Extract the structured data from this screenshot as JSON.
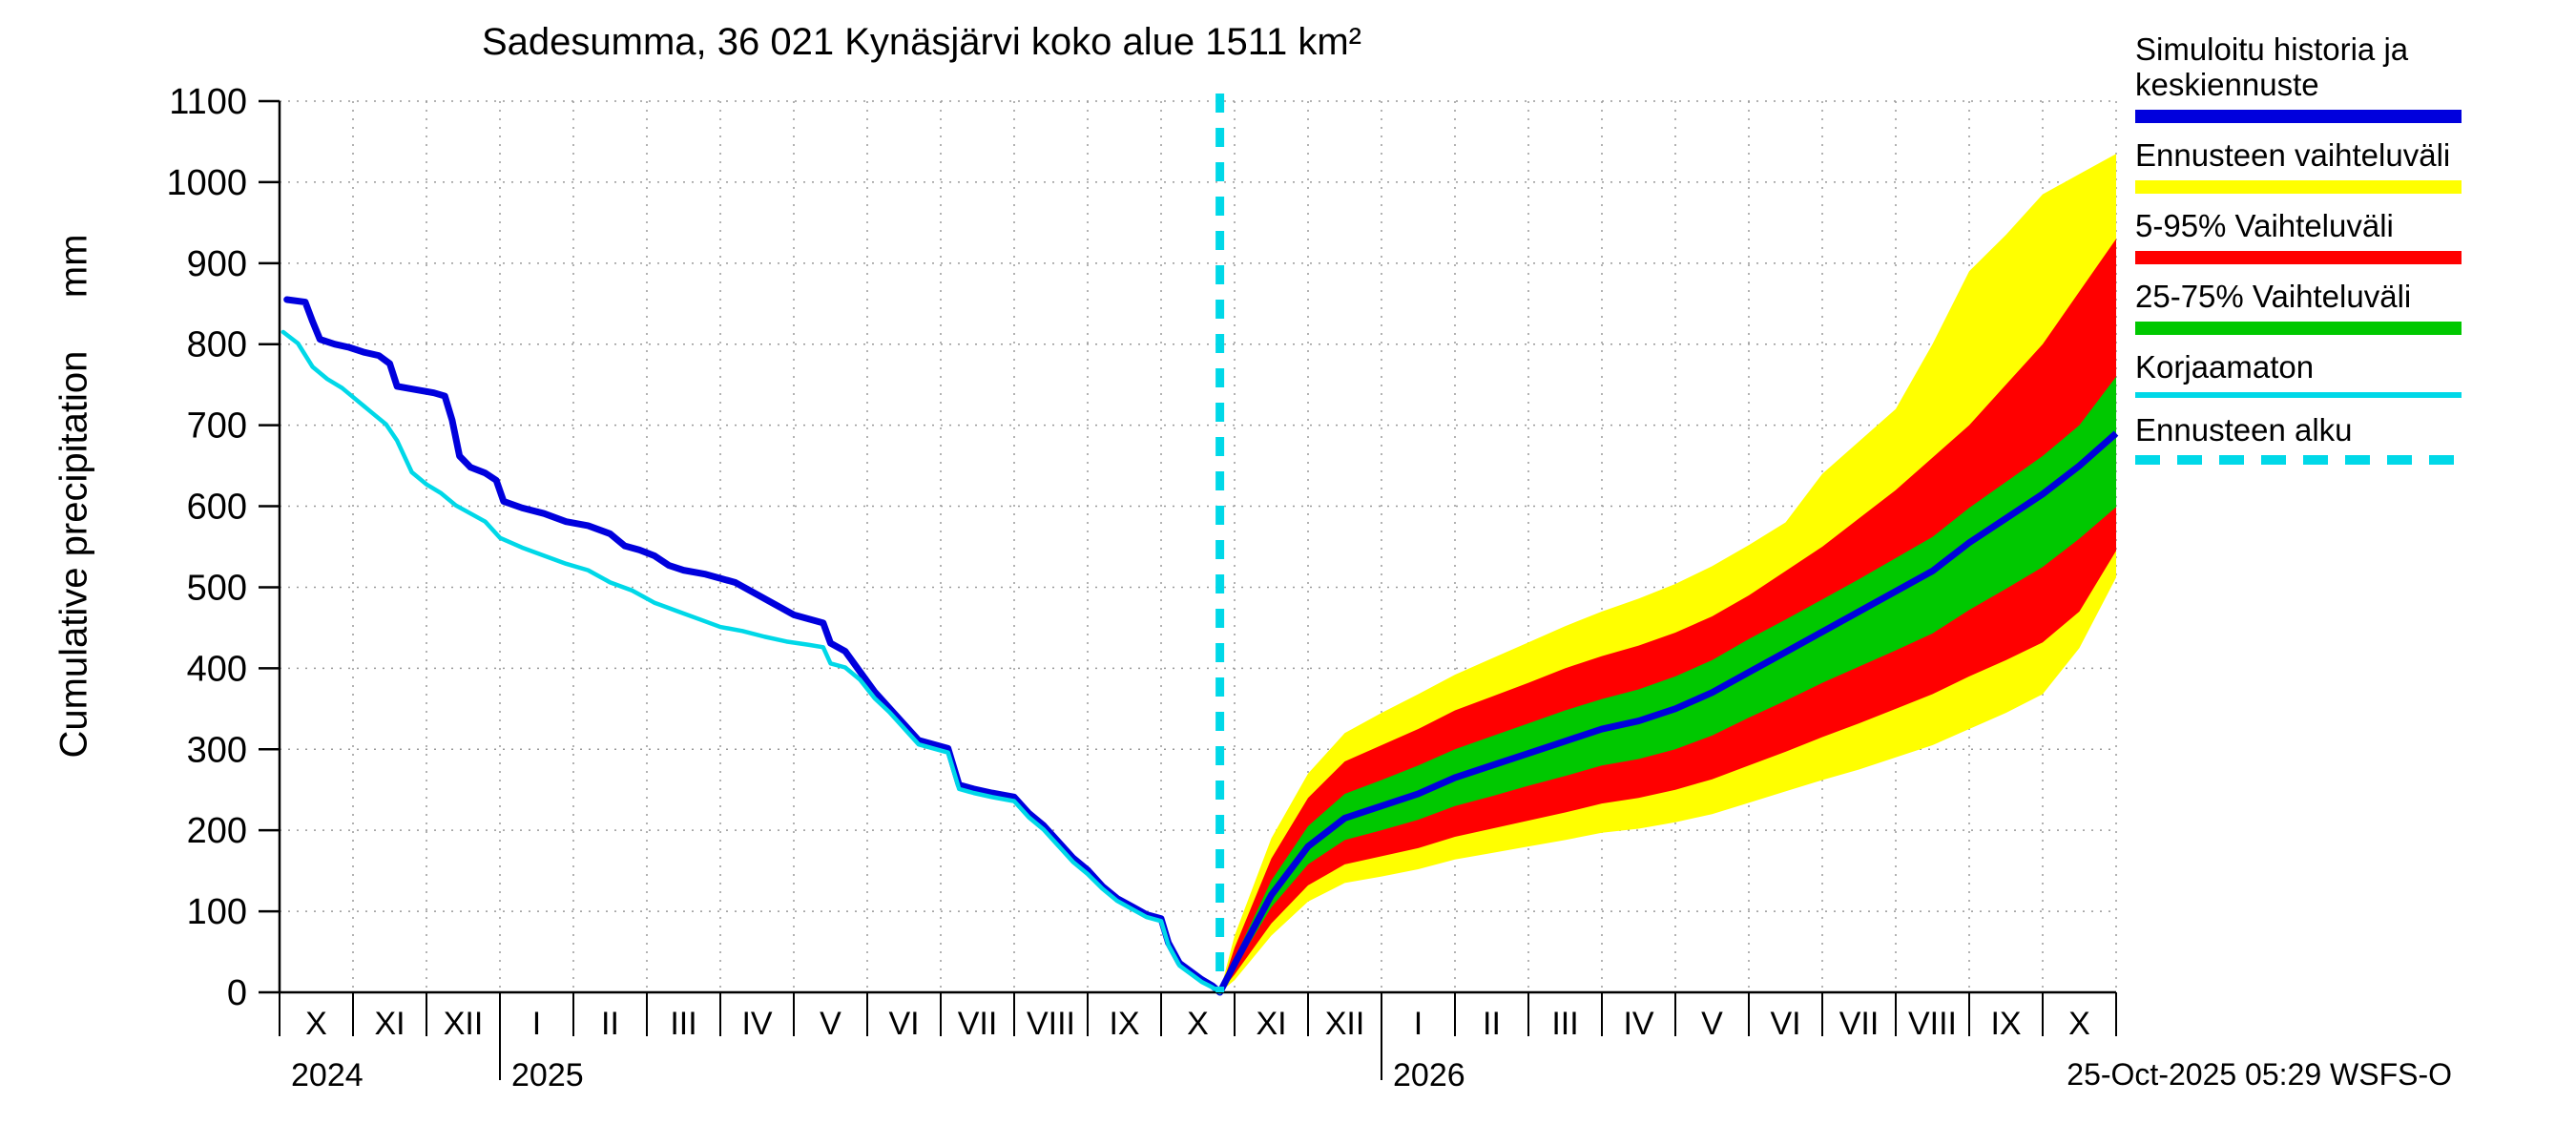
{
  "page": {
    "title": "Sadesumma, 36 021 Kynäsjärvi koko alue 1511 km²",
    "ylabel": "Cumulative precipitation     mm",
    "footer": "25-Oct-2025 05:29 WSFS-O"
  },
  "legend": {
    "entries": [
      {
        "label": "Simuloitu historia ja keskiennuste",
        "color": "#0000dd",
        "style": "thick-line"
      },
      {
        "label": "Ennusteen vaihteluväli",
        "color": "#ffff00",
        "style": "thick-line"
      },
      {
        "label": "5-95% Vaihteluväli",
        "color": "#ff0000",
        "style": "thick-line"
      },
      {
        "label": "25-75% Vaihteluväli",
        "color": "#00c800",
        "style": "thick-line"
      },
      {
        "label": "Korjaamaton",
        "color": "#00d8e8",
        "style": "thin-line"
      },
      {
        "label": "Ennusteen alku",
        "color": "#00d8e8",
        "style": "dashed-line"
      }
    ]
  },
  "chart_data": {
    "type": "line",
    "title": "Sadesumma, 36 021 Kynäsjärvi koko alue 1511 km²",
    "ylabel": "Cumulative precipitation (mm)",
    "ylim": [
      0,
      1100
    ],
    "yticks": [
      0,
      100,
      200,
      300,
      400,
      500,
      600,
      700,
      800,
      900,
      1000,
      1100
    ],
    "xlim_months": [
      0,
      25
    ],
    "x_unit": "months from 2024-10-01",
    "month_labels": [
      "X",
      "XI",
      "XII",
      "I",
      "II",
      "III",
      "IV",
      "V",
      "VI",
      "VII",
      "VIII",
      "IX",
      "X",
      "XI",
      "XII",
      "I",
      "II",
      "III",
      "IV",
      "V",
      "VI",
      "VII",
      "VIII",
      "IX",
      "X"
    ],
    "year_labels": [
      {
        "label": "2024",
        "at_month": 0
      },
      {
        "label": "2025",
        "at_month": 3
      },
      {
        "label": "2026",
        "at_month": 15
      }
    ],
    "forecast_start_month": 12.8,
    "forecast_start_date": "25-Oct-2025",
    "grid": true,
    "legend_position": "top-right",
    "colors": {
      "history_mean": "#0000dd",
      "uncorrected": "#00d8e8",
      "range": "#ffff00",
      "p5_95": "#ff0000",
      "p25_75": "#00c800",
      "grid": "#999999",
      "axis": "#000000"
    },
    "series": {
      "history_corrected": [
        [
          0.1,
          855
        ],
        [
          0.35,
          852
        ],
        [
          0.45,
          828
        ],
        [
          0.55,
          806
        ],
        [
          0.75,
          800
        ],
        [
          0.95,
          796
        ],
        [
          1.15,
          790
        ],
        [
          1.35,
          786
        ],
        [
          1.5,
          776
        ],
        [
          1.6,
          748
        ],
        [
          1.85,
          744
        ],
        [
          2.1,
          740
        ],
        [
          2.25,
          736
        ],
        [
          2.35,
          706
        ],
        [
          2.45,
          662
        ],
        [
          2.6,
          648
        ],
        [
          2.8,
          641
        ],
        [
          2.95,
          632
        ],
        [
          3.05,
          606
        ],
        [
          3.3,
          598
        ],
        [
          3.6,
          591
        ],
        [
          3.9,
          581
        ],
        [
          4.2,
          576
        ],
        [
          4.5,
          566
        ],
        [
          4.7,
          551
        ],
        [
          4.9,
          546
        ],
        [
          5.1,
          539
        ],
        [
          5.3,
          527
        ],
        [
          5.5,
          521
        ],
        [
          5.8,
          516
        ],
        [
          6.0,
          511
        ],
        [
          6.2,
          506
        ],
        [
          6.5,
          491
        ],
        [
          6.8,
          476
        ],
        [
          7.0,
          466
        ],
        [
          7.2,
          461
        ],
        [
          7.4,
          456
        ],
        [
          7.5,
          431
        ],
        [
          7.7,
          421
        ],
        [
          7.9,
          396
        ],
        [
          8.1,
          371
        ],
        [
          8.3,
          351
        ],
        [
          8.5,
          331
        ],
        [
          8.7,
          311
        ],
        [
          8.9,
          306
        ],
        [
          9.1,
          301
        ],
        [
          9.25,
          256
        ],
        [
          9.45,
          251
        ],
        [
          9.7,
          246
        ],
        [
          10.0,
          241
        ],
        [
          10.2,
          221
        ],
        [
          10.4,
          206
        ],
        [
          10.6,
          186
        ],
        [
          10.8,
          166
        ],
        [
          11.0,
          151
        ],
        [
          11.2,
          131
        ],
        [
          11.4,
          116
        ],
        [
          11.6,
          106
        ],
        [
          11.8,
          96
        ],
        [
          12.0,
          91
        ],
        [
          12.1,
          61
        ],
        [
          12.25,
          36
        ],
        [
          12.4,
          26
        ],
        [
          12.55,
          16
        ],
        [
          12.7,
          8
        ],
        [
          12.8,
          0
        ]
      ],
      "history_uncorrected": [
        [
          0.05,
          815
        ],
        [
          0.25,
          801
        ],
        [
          0.45,
          772
        ],
        [
          0.65,
          757
        ],
        [
          0.85,
          746
        ],
        [
          1.05,
          731
        ],
        [
          1.25,
          716
        ],
        [
          1.45,
          701
        ],
        [
          1.6,
          681
        ],
        [
          1.8,
          642
        ],
        [
          2.0,
          627
        ],
        [
          2.2,
          616
        ],
        [
          2.4,
          601
        ],
        [
          2.6,
          591
        ],
        [
          2.8,
          581
        ],
        [
          3.0,
          561
        ],
        [
          3.3,
          549
        ],
        [
          3.6,
          539
        ],
        [
          3.9,
          529
        ],
        [
          4.2,
          521
        ],
        [
          4.5,
          506
        ],
        [
          4.8,
          496
        ],
        [
          5.1,
          481
        ],
        [
          5.4,
          471
        ],
        [
          5.7,
          461
        ],
        [
          6.0,
          451
        ],
        [
          6.3,
          446
        ],
        [
          6.6,
          439
        ],
        [
          6.9,
          433
        ],
        [
          7.2,
          429
        ],
        [
          7.4,
          426
        ],
        [
          7.5,
          406
        ],
        [
          7.7,
          401
        ],
        [
          7.9,
          386
        ],
        [
          8.1,
          363
        ],
        [
          8.3,
          346
        ],
        [
          8.5,
          326
        ],
        [
          8.7,
          306
        ],
        [
          8.9,
          301
        ],
        [
          9.1,
          296
        ],
        [
          9.25,
          251
        ],
        [
          9.45,
          246
        ],
        [
          9.7,
          241
        ],
        [
          10.0,
          236
        ],
        [
          10.2,
          216
        ],
        [
          10.4,
          201
        ],
        [
          10.6,
          181
        ],
        [
          10.8,
          161
        ],
        [
          11.0,
          146
        ],
        [
          11.2,
          128
        ],
        [
          11.4,
          113
        ],
        [
          11.6,
          103
        ],
        [
          11.8,
          93
        ],
        [
          12.0,
          88
        ],
        [
          12.1,
          58
        ],
        [
          12.25,
          33
        ],
        [
          12.4,
          23
        ],
        [
          12.55,
          13
        ],
        [
          12.7,
          6
        ],
        [
          12.8,
          0
        ]
      ],
      "forecast": {
        "x": [
          12.8,
          13,
          13.5,
          14,
          14.5,
          15,
          15.5,
          16,
          16.5,
          17,
          17.5,
          18,
          18.5,
          19,
          19.5,
          20,
          20.5,
          21,
          21.5,
          22,
          22.5,
          23,
          23.5,
          24,
          24.5,
          25
        ],
        "mean": [
          0,
          35,
          120,
          180,
          215,
          230,
          245,
          265,
          280,
          295,
          310,
          325,
          335,
          350,
          370,
          395,
          420,
          445,
          470,
          495,
          520,
          555,
          585,
          615,
          650,
          690
        ],
        "p25": [
          0,
          30,
          105,
          158,
          188,
          200,
          213,
          230,
          242,
          255,
          267,
          280,
          288,
          300,
          317,
          339,
          360,
          382,
          402,
          422,
          443,
          472,
          498,
          525,
          560,
          599
        ],
        "p75": [
          0,
          42,
          138,
          205,
          245,
          262,
          280,
          300,
          316,
          332,
          348,
          362,
          374,
          390,
          410,
          436,
          460,
          485,
          510,
          536,
          562,
          598,
          630,
          662,
          700,
          760
        ],
        "p5": [
          0,
          22,
          85,
          132,
          158,
          168,
          178,
          192,
          202,
          212,
          222,
          233,
          240,
          250,
          263,
          280,
          297,
          315,
          332,
          350,
          368,
          390,
          410,
          432,
          470,
          545
        ],
        "p95": [
          0,
          55,
          165,
          240,
          285,
          305,
          325,
          348,
          365,
          382,
          400,
          415,
          428,
          444,
          464,
          490,
          520,
          550,
          585,
          620,
          660,
          700,
          750,
          800,
          865,
          930
        ],
        "min": [
          0,
          15,
          70,
          112,
          135,
          143,
          152,
          164,
          172,
          180,
          188,
          197,
          202,
          210,
          220,
          234,
          248,
          262,
          275,
          290,
          305,
          325,
          345,
          368,
          425,
          512
        ],
        "max": [
          0,
          70,
          190,
          270,
          320,
          345,
          368,
          392,
          412,
          432,
          452,
          470,
          486,
          504,
          526,
          552,
          580,
          640,
          680,
          720,
          800,
          890,
          935,
          985,
          1010,
          1035
        ]
      }
    }
  }
}
